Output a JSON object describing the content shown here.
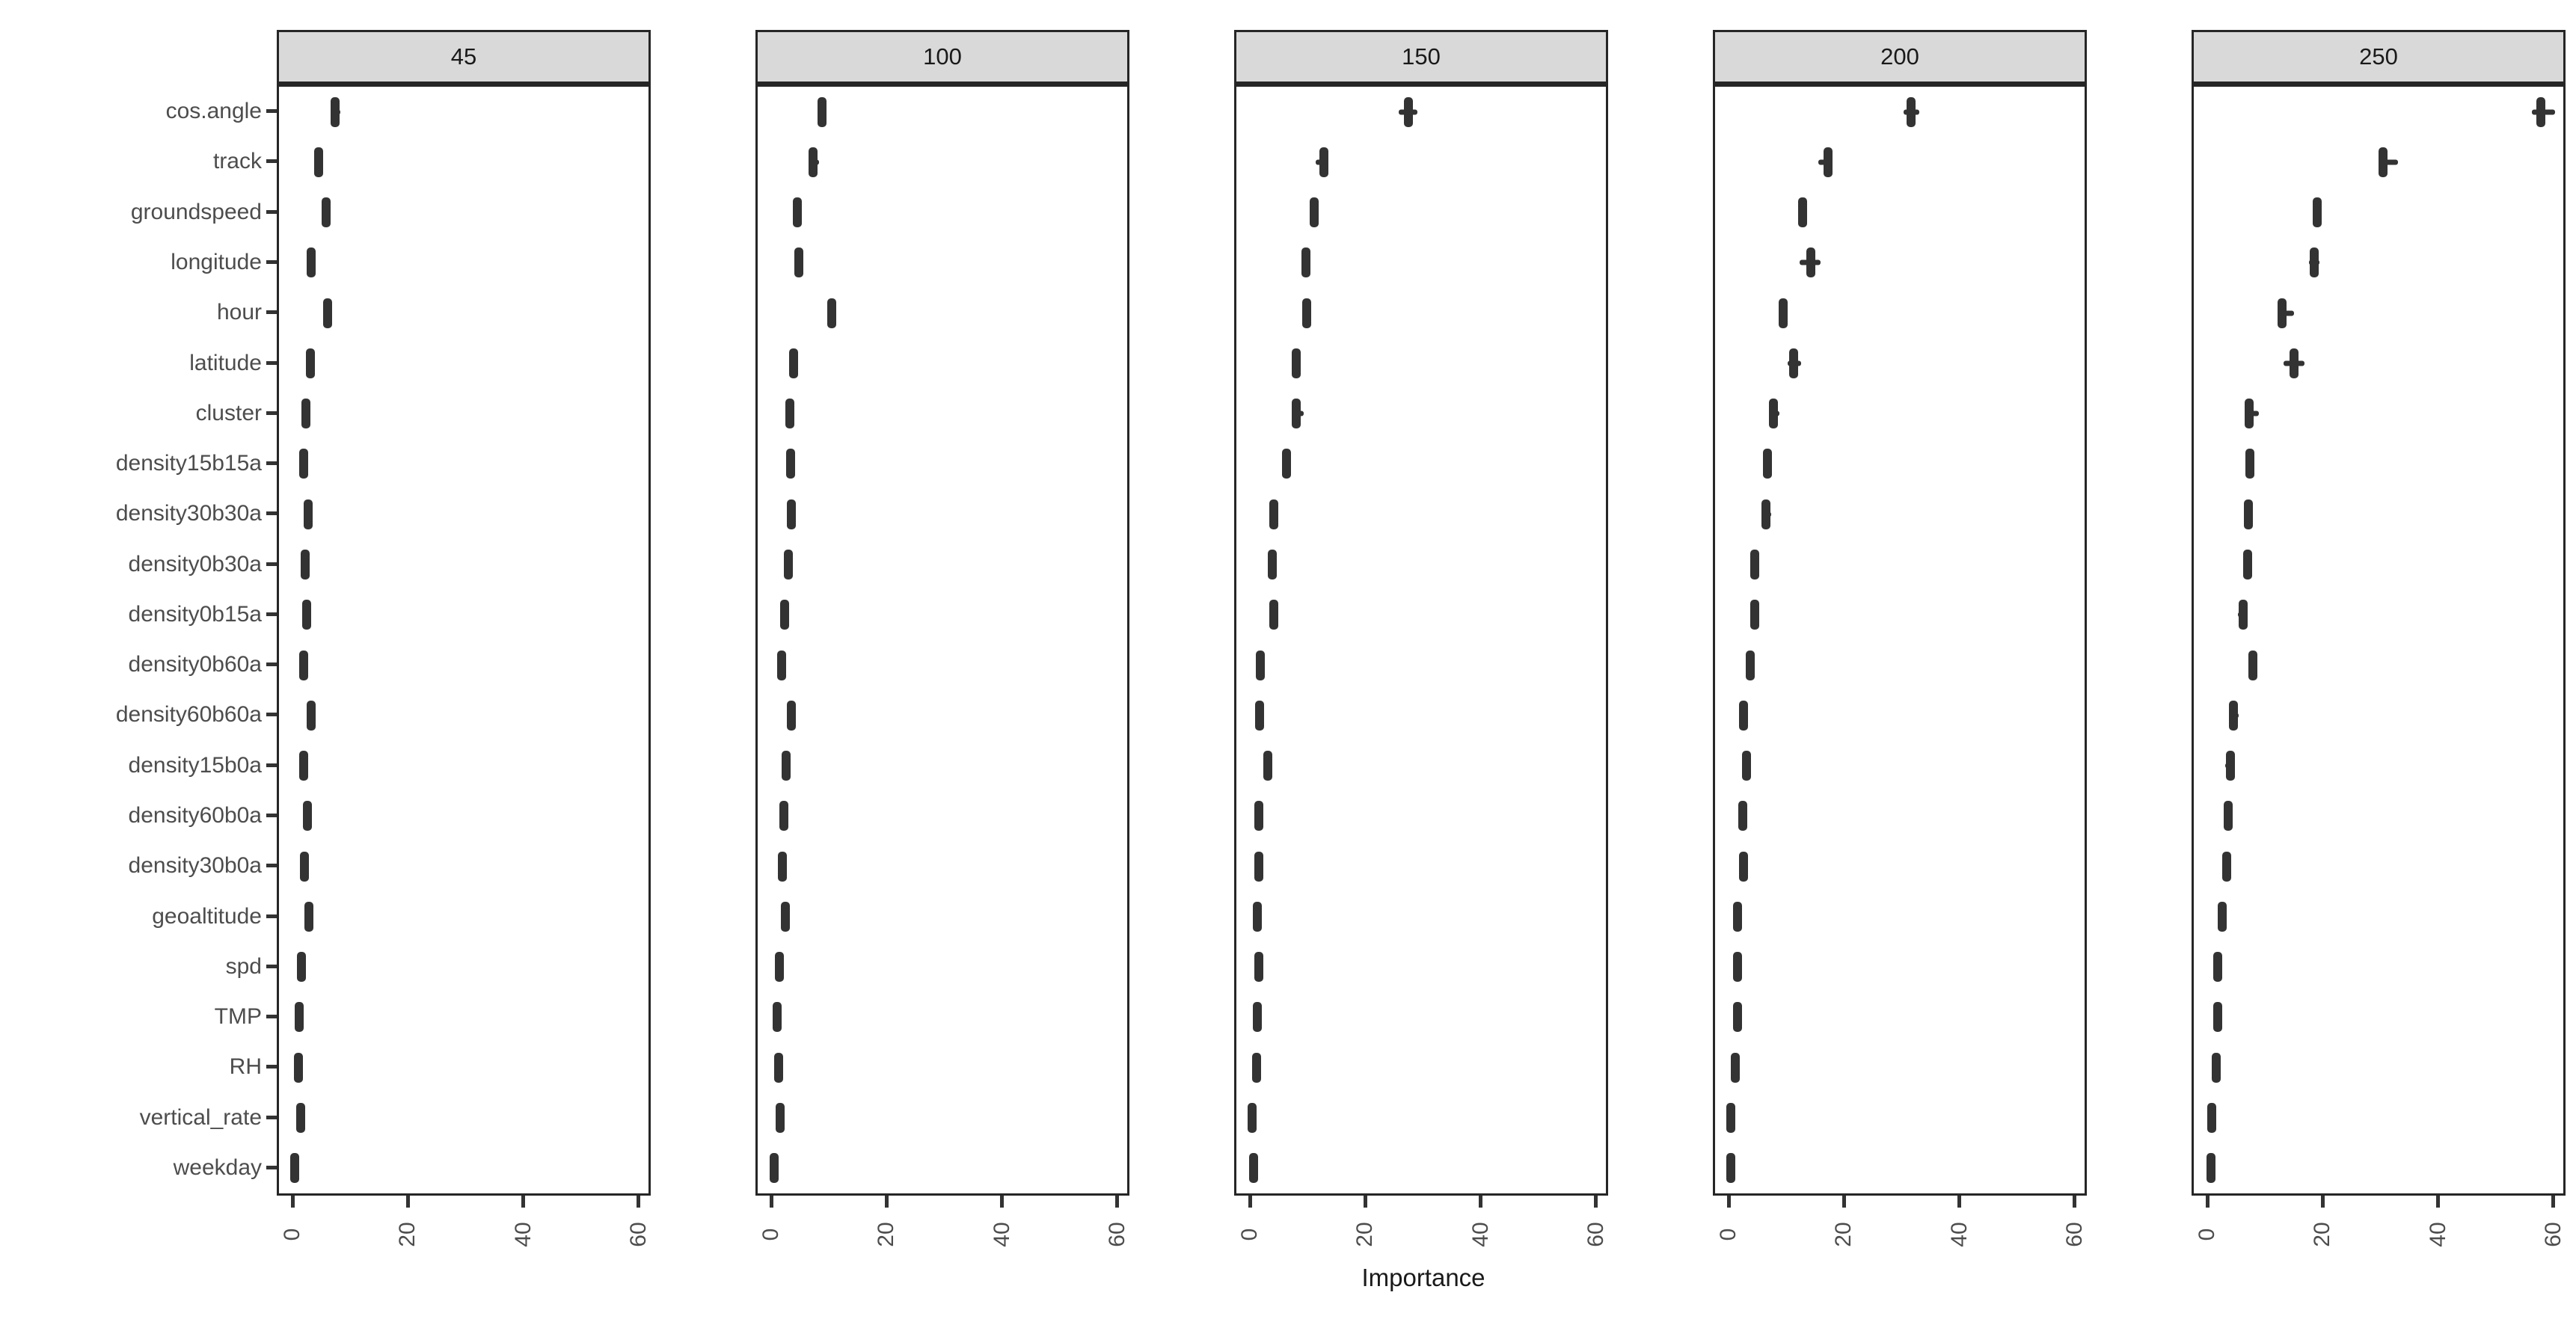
{
  "x_axis": {
    "label": "Importance",
    "tick_values": [
      0,
      20,
      40,
      60
    ]
  },
  "colors": {
    "strip_bg": "#d9d9d9",
    "panel_border": "#262626",
    "box_fill": "#333333",
    "axis_text": "#4d4d4d",
    "title_text": "#1a1a1a"
  },
  "chart_data": {
    "type": "boxplot",
    "orientation": "horizontal",
    "title": "",
    "xlabel": "Importance",
    "ylabel": "",
    "xlim": [
      -2.3,
      62.5
    ],
    "x_ticks": [
      0,
      20,
      40,
      60
    ],
    "grid": "off",
    "legend": "none",
    "facet_labels": [
      "45",
      "100",
      "150",
      "200",
      "250"
    ],
    "categories": [
      "cos.angle",
      "track",
      "groundspeed",
      "longitude",
      "hour",
      "latitude",
      "cluster",
      "density15b15a",
      "density30b30a",
      "density0b30a",
      "density0b15a",
      "density0b60a",
      "density60b60a",
      "density15b0a",
      "density60b0a",
      "density30b0a",
      "geoaltitude",
      "spd",
      "TMP",
      "RH",
      "vertical_rate",
      "weekday"
    ],
    "stat_format": [
      "median",
      "whisker_low",
      "whisker_high"
    ],
    "facets": [
      {
        "label": "45",
        "stats": [
          [
            7.4,
            6.6,
            8.3
          ],
          [
            4.6,
            4.0,
            5.2
          ],
          [
            5.8,
            5.2,
            6.5
          ],
          [
            3.2,
            2.6,
            3.8
          ],
          [
            6.1,
            5.5,
            6.8
          ],
          [
            3.1,
            2.5,
            3.9
          ],
          [
            2.3,
            1.6,
            3.0
          ],
          [
            2.0,
            1.5,
            2.5
          ],
          [
            2.7,
            2.2,
            3.2
          ],
          [
            2.2,
            1.8,
            2.8
          ],
          [
            2.4,
            1.9,
            2.9
          ],
          [
            2.0,
            1.5,
            2.5
          ],
          [
            3.2,
            2.7,
            3.7
          ],
          [
            2.0,
            1.5,
            2.5
          ],
          [
            2.6,
            2.1,
            3.1
          ],
          [
            2.1,
            1.7,
            2.7
          ],
          [
            2.8,
            2.3,
            3.3
          ],
          [
            1.5,
            1.0,
            2.0
          ],
          [
            1.2,
            0.7,
            1.7
          ],
          [
            1.0,
            0.5,
            1.5
          ],
          [
            1.4,
            0.9,
            1.9
          ],
          [
            0.4,
            0.0,
            0.9
          ]
        ]
      },
      {
        "label": "100",
        "stats": [
          [
            8.8,
            8.0,
            9.6
          ],
          [
            7.2,
            6.5,
            8.3
          ],
          [
            4.5,
            3.9,
            5.1
          ],
          [
            4.8,
            4.0,
            5.6
          ],
          [
            10.5,
            9.8,
            11.2
          ],
          [
            3.9,
            3.1,
            4.5
          ],
          [
            3.2,
            2.6,
            3.8
          ],
          [
            3.4,
            2.9,
            3.9
          ],
          [
            3.5,
            3.0,
            4.0
          ],
          [
            3.0,
            2.5,
            3.5
          ],
          [
            2.3,
            1.8,
            2.8
          ],
          [
            1.8,
            1.3,
            2.3
          ],
          [
            3.5,
            2.9,
            4.3
          ],
          [
            2.6,
            2.1,
            3.1
          ],
          [
            2.2,
            1.7,
            2.7
          ],
          [
            1.9,
            1.4,
            2.4
          ],
          [
            2.4,
            1.9,
            2.9
          ],
          [
            1.4,
            0.9,
            1.9
          ],
          [
            1.0,
            0.5,
            1.5
          ],
          [
            1.3,
            0.8,
            1.8
          ],
          [
            1.6,
            1.1,
            2.1
          ],
          [
            0.5,
            0.1,
            1.0
          ]
        ]
      },
      {
        "label": "150",
        "stats": [
          [
            27.5,
            25.8,
            29.0
          ],
          [
            12.8,
            11.4,
            13.6
          ],
          [
            11.2,
            10.5,
            11.9
          ],
          [
            9.7,
            9.0,
            10.4
          ],
          [
            9.8,
            9.1,
            10.5
          ],
          [
            8.0,
            7.3,
            8.7
          ],
          [
            8.0,
            7.3,
            9.3
          ],
          [
            6.3,
            5.7,
            6.9
          ],
          [
            4.1,
            3.5,
            4.7
          ],
          [
            3.9,
            3.3,
            4.5
          ],
          [
            4.1,
            3.5,
            4.7
          ],
          [
            1.8,
            1.3,
            2.4
          ],
          [
            1.7,
            1.2,
            2.2
          ],
          [
            3.1,
            2.5,
            3.7
          ],
          [
            1.5,
            1.0,
            2.0
          ],
          [
            1.5,
            1.0,
            2.0
          ],
          [
            1.3,
            0.8,
            1.8
          ],
          [
            1.5,
            1.0,
            2.0
          ],
          [
            1.3,
            0.8,
            1.8
          ],
          [
            1.2,
            0.7,
            1.7
          ],
          [
            0.4,
            0.0,
            0.9
          ],
          [
            0.6,
            0.1,
            1.1
          ]
        ]
      },
      {
        "label": "200",
        "stats": [
          [
            31.6,
            30.3,
            33.0
          ],
          [
            17.2,
            15.6,
            18.0
          ],
          [
            12.8,
            12.1,
            13.5
          ],
          [
            14.2,
            12.3,
            16.0
          ],
          [
            9.4,
            8.8,
            10.3
          ],
          [
            11.3,
            10.2,
            12.6
          ],
          [
            7.8,
            7.2,
            8.8
          ],
          [
            6.8,
            6.1,
            7.5
          ],
          [
            6.5,
            5.9,
            7.4
          ],
          [
            4.6,
            3.9,
            5.2
          ],
          [
            4.6,
            4.0,
            5.2
          ],
          [
            3.7,
            3.1,
            4.3
          ],
          [
            2.6,
            2.1,
            3.1
          ],
          [
            3.1,
            2.5,
            3.9
          ],
          [
            2.5,
            2.0,
            3.0
          ],
          [
            2.6,
            2.1,
            3.1
          ],
          [
            1.6,
            1.1,
            2.1
          ],
          [
            1.6,
            1.1,
            2.1
          ],
          [
            1.6,
            1.0,
            2.2
          ],
          [
            1.2,
            0.7,
            1.7
          ],
          [
            0.4,
            0.0,
            0.9
          ],
          [
            0.4,
            0.0,
            0.9
          ]
        ]
      },
      {
        "label": "250",
        "stats": [
          [
            57.8,
            56.2,
            60.3
          ],
          [
            30.5,
            29.7,
            33.0
          ],
          [
            19.0,
            18.3,
            19.8
          ],
          [
            18.5,
            17.6,
            19.4
          ],
          [
            13.0,
            12.4,
            15.0
          ],
          [
            15.0,
            13.2,
            16.8
          ],
          [
            7.2,
            6.6,
            8.9
          ],
          [
            7.4,
            6.8,
            8.0
          ],
          [
            7.1,
            6.5,
            7.7
          ],
          [
            7.0,
            6.4,
            7.6
          ],
          [
            6.2,
            5.3,
            6.8
          ],
          [
            7.9,
            7.3,
            8.5
          ],
          [
            4.5,
            4.0,
            5.4
          ],
          [
            4.0,
            3.1,
            4.6
          ],
          [
            3.6,
            3.1,
            4.1
          ],
          [
            3.4,
            2.9,
            3.9
          ],
          [
            2.6,
            2.1,
            3.1
          ],
          [
            1.8,
            1.3,
            2.3
          ],
          [
            1.8,
            1.3,
            2.3
          ],
          [
            1.6,
            1.1,
            2.1
          ],
          [
            0.8,
            0.3,
            1.3
          ],
          [
            0.7,
            0.2,
            1.2
          ]
        ]
      }
    ]
  }
}
